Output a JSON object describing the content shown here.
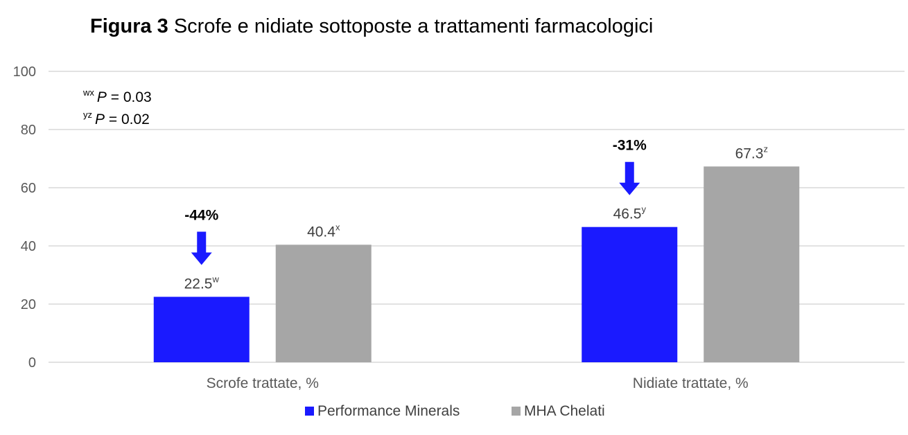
{
  "chart_data": {
    "type": "bar",
    "title_prefix": "Figura 3",
    "title": "Scrofe e nidiate sottoposte a trattamenti farmacologici",
    "categories": [
      "Scrofe trattate, %",
      "Nidiate trattate, %"
    ],
    "series": [
      {
        "name": "Performance Minerals",
        "color": "#1a1aff",
        "values": [
          22.5,
          46.5
        ],
        "value_labels": [
          "22.5",
          "46.5"
        ],
        "superscripts": [
          "w",
          "y"
        ]
      },
      {
        "name": "MHA Chelati",
        "color": "#a6a6a6",
        "values": [
          40.4,
          67.3
        ],
        "value_labels": [
          "40.4",
          "67.3"
        ],
        "superscripts": [
          "x",
          "z"
        ]
      }
    ],
    "ylim": [
      0,
      100
    ],
    "yticks": [
      0,
      20,
      40,
      60,
      80,
      100
    ],
    "grid": true,
    "legend_position": "bottom",
    "reductions": [
      "-44%",
      "-31%"
    ],
    "annotations": [
      {
        "sup": "wx",
        "italic": "P",
        "text": " = 0.03"
      },
      {
        "sup": "yz",
        "italic": "P",
        "text": " = 0.02"
      }
    ],
    "arrow_color": "#1a1aff"
  }
}
